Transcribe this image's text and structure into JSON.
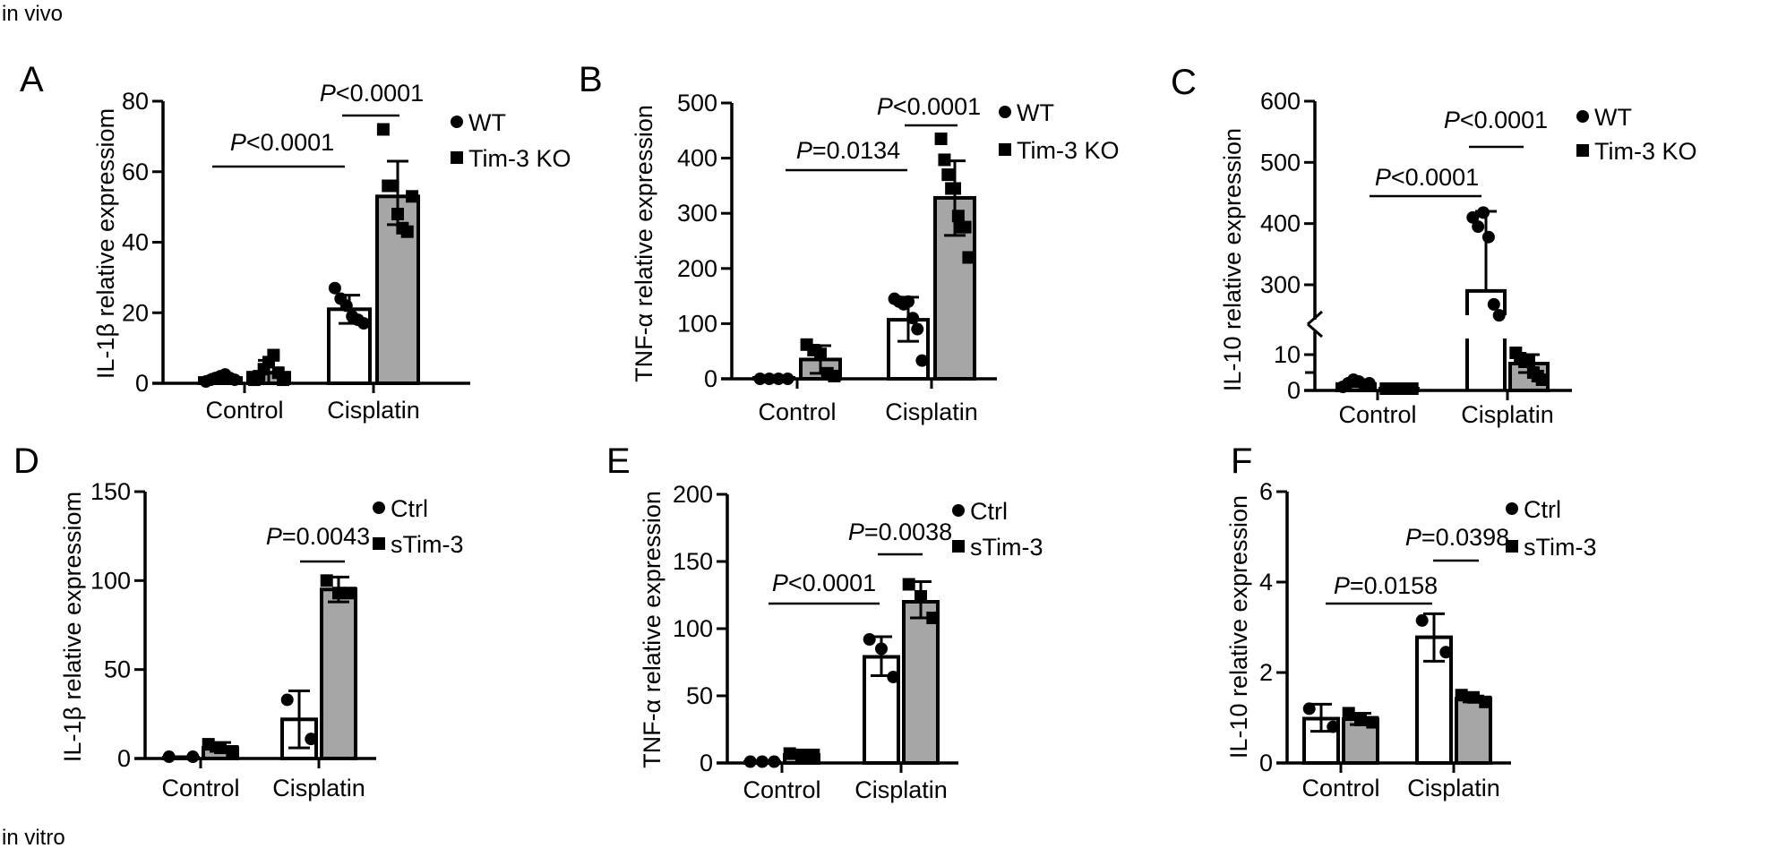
{
  "figure": {
    "top_label": "in vivo",
    "bottom_label": "in vitro"
  },
  "chart_data": [
    {
      "panel": "A",
      "type": "bar",
      "ylabel": "IL-1β relative expressiom",
      "ylim": [
        0,
        80
      ],
      "yticks": [
        0,
        20,
        40,
        60,
        80
      ],
      "categories": [
        "Control",
        "Cisplatin"
      ],
      "legend_position": "right",
      "series": [
        {
          "name": "WT",
          "marker": "circle",
          "fill": "#ffffff",
          "values": [
            1.5,
            21
          ],
          "errors": [
            [
              0.5,
              2.5
            ],
            [
              17,
              25
            ]
          ],
          "points": [
            [
              0.5,
              1,
              1.5,
              2,
              2.5,
              1.5,
              1
            ],
            [
              27,
              24,
              22,
              19,
              18,
              17
            ]
          ]
        },
        {
          "name": "Tim-3 KO",
          "marker": "square",
          "fill": "#a6a6a6",
          "values": [
            3,
            53
          ],
          "errors": [
            [
              0,
              6.5
            ],
            [
              45,
              63
            ]
          ],
          "points": [
            [
              1,
              2,
              4,
              6,
              8,
              3,
              1
            ],
            [
              72,
              56,
              56,
              48,
              44,
              43,
              53
            ]
          ]
        }
      ],
      "comparisons": [
        {
          "p": "P",
          "text": "<0.0001"
        },
        {
          "p": "P",
          "text": "<0.0001"
        }
      ]
    },
    {
      "panel": "B",
      "type": "bar",
      "ylabel": "TNF-α relative expression",
      "ylim": [
        0,
        500
      ],
      "yticks": [
        0,
        100,
        200,
        300,
        400,
        500
      ],
      "categories": [
        "Control",
        "Cisplatin"
      ],
      "legend_position": "right",
      "series": [
        {
          "name": "WT",
          "marker": "circle",
          "fill": "#ffffff",
          "values": [
            0,
            107
          ],
          "errors": [
            [
              0,
              0
            ],
            [
              68,
              148
            ]
          ],
          "points": [
            [
              0,
              0,
              0,
              0
            ],
            [
              145,
              140,
              135,
              140,
              110,
              90,
              33
            ]
          ]
        },
        {
          "name": "Tim-3 KO",
          "marker": "square",
          "fill": "#a6a6a6",
          "values": [
            35,
            328
          ],
          "errors": [
            [
              10,
              60
            ],
            [
              260,
              395
            ]
          ],
          "points": [
            [
              62,
              52,
              45,
              10,
              5
            ],
            [
              435,
              397,
              370,
              345,
              345,
              295,
              275,
              275,
              220
            ]
          ]
        }
      ],
      "comparisons": [
        {
          "p": "P",
          "text": "=0.0134"
        },
        {
          "p": "P",
          "text": "<0.0001"
        }
      ]
    },
    {
      "panel": "C",
      "type": "bar",
      "ylabel": "IL-10 relative expression",
      "ylim": [
        0,
        600
      ],
      "yticks": [
        0,
        10,
        300,
        400,
        500,
        600
      ],
      "minor_yticks": [
        5
      ],
      "axis_break": [
        10,
        300
      ],
      "categories": [
        "Control",
        "Cisplatin"
      ],
      "legend_position": "right",
      "series": [
        {
          "name": "WT",
          "marker": "circle",
          "fill": "#ffffff",
          "values": [
            1.8,
            290
          ],
          "errors": [
            [
              1,
              3
            ],
            [
              290,
              420
            ]
          ],
          "points": [
            [
              1,
              2,
              3,
              2.5,
              1.5,
              2
            ],
            [
              410,
              395,
              418,
              378,
              268,
              250
            ]
          ]
        },
        {
          "name": "Tim-3 KO",
          "marker": "square",
          "fill": "#a6a6a6",
          "values": [
            0.5,
            7.5
          ],
          "errors": [
            [
              0.3,
              0.7
            ],
            [
              5,
              10
            ]
          ],
          "points": [
            [
              0.5,
              0.5,
              0.5,
              0.5,
              0.5
            ],
            [
              10.5,
              9,
              8,
              8,
              5,
              4,
              3
            ]
          ]
        }
      ],
      "comparisons": [
        {
          "p": "P",
          "text": "<0.0001"
        },
        {
          "p": "P",
          "text": "<0.0001"
        }
      ]
    },
    {
      "panel": "D",
      "type": "bar",
      "ylabel": "IL-1β relative expressiom",
      "ylim": [
        0,
        150
      ],
      "yticks": [
        0,
        50,
        100,
        150
      ],
      "categories": [
        "Control",
        "Cisplatin"
      ],
      "legend_position": "right",
      "series": [
        {
          "name": "Ctrl",
          "marker": "circle",
          "fill": "#ffffff",
          "values": [
            0.5,
            22
          ],
          "errors": [
            [
              0,
              1
            ],
            [
              6,
              38
            ]
          ],
          "points": [
            [
              1,
              1
            ],
            [
              33,
              11
            ]
          ]
        },
        {
          "name": "sTim-3",
          "marker": "square",
          "fill": "#a6a6a6",
          "values": [
            6,
            95
          ],
          "errors": [
            [
              4,
              9
            ],
            [
              88,
              102
            ]
          ],
          "points": [
            [
              8,
              6,
              4
            ],
            [
              100,
              93,
              93
            ]
          ]
        }
      ],
      "comparisons": [
        {
          "p": "P",
          "text": "=0.0043"
        }
      ]
    },
    {
      "panel": "E",
      "type": "bar",
      "ylabel": "TNF-α relative expression",
      "ylim": [
        0,
        200
      ],
      "yticks": [
        0,
        50,
        100,
        150,
        200
      ],
      "categories": [
        "Control",
        "Cisplatin"
      ],
      "legend_position": "right",
      "series": [
        {
          "name": "Ctrl",
          "marker": "circle",
          "fill": "#ffffff",
          "values": [
            0.5,
            79
          ],
          "errors": [
            [
              0,
              1
            ],
            [
              65,
              94
            ]
          ],
          "points": [
            [
              1,
              1,
              1
            ],
            [
              92,
              85,
              64
            ]
          ]
        },
        {
          "name": "sTim-3",
          "marker": "square",
          "fill": "#a6a6a6",
          "values": [
            6,
            120
          ],
          "errors": [
            [
              5,
              7
            ],
            [
              108,
              135
            ]
          ],
          "points": [
            [
              7,
              6,
              6
            ],
            [
              133,
              124,
              108
            ]
          ]
        }
      ],
      "comparisons": [
        {
          "p": "P",
          "text": "<0.0001"
        },
        {
          "p": "P",
          "text": "=0.0038"
        }
      ]
    },
    {
      "panel": "F",
      "type": "bar",
      "ylabel": "IL-10 relative expression",
      "ylim": [
        0,
        6
      ],
      "yticks": [
        0,
        2,
        4,
        6
      ],
      "categories": [
        "Control",
        "Cisplatin"
      ],
      "legend_position": "right",
      "series": [
        {
          "name": "Ctrl",
          "marker": "circle",
          "fill": "#ffffff",
          "values": [
            0.98,
            2.78
          ],
          "errors": [
            [
              0.7,
              1.3
            ],
            [
              2.25,
              3.3
            ]
          ],
          "points": [
            [
              1.2,
              0.8
            ],
            [
              3.15,
              2.45
            ]
          ]
        },
        {
          "name": "sTim-3",
          "marker": "square",
          "fill": "#a6a6a6",
          "values": [
            0.97,
            1.42
          ],
          "errors": [
            [
              0.85,
              1.1
            ],
            [
              1.35,
              1.48
            ]
          ],
          "points": [
            [
              1.1,
              0.95,
              0.9
            ],
            [
              1.5,
              1.45,
              1.35
            ]
          ]
        }
      ],
      "comparisons": [
        {
          "p": "P",
          "text": "=0.0158"
        },
        {
          "p": "P",
          "text": "=0.0398"
        }
      ]
    }
  ]
}
